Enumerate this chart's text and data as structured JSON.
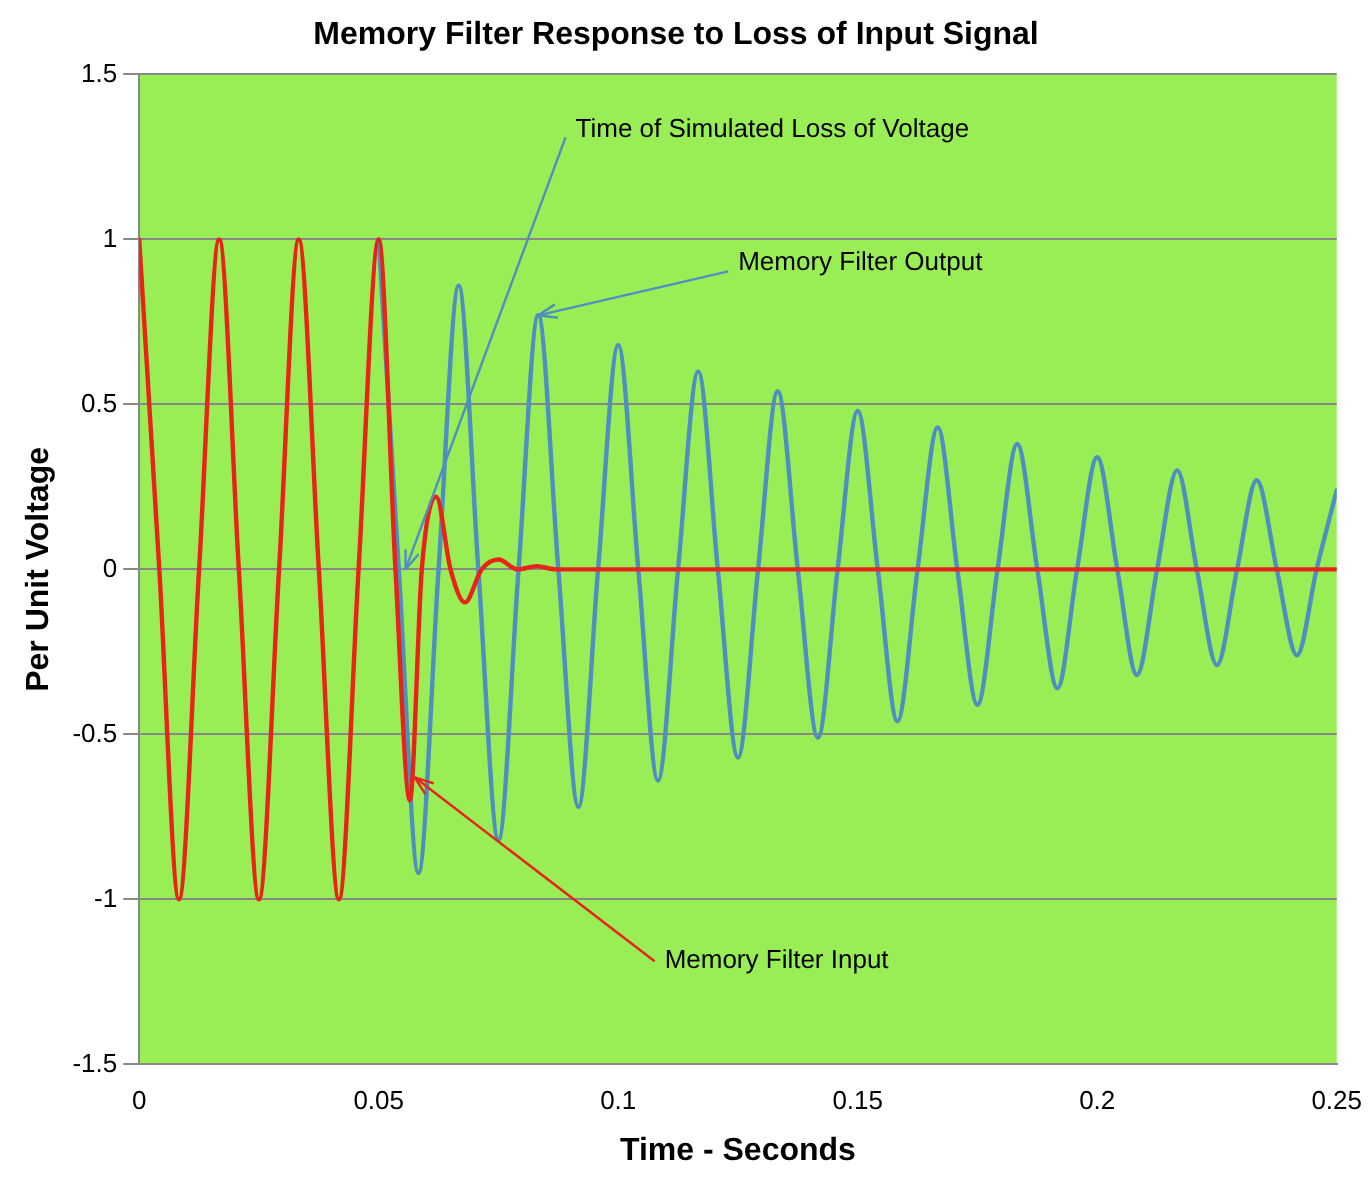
{
  "chart_data": {
    "type": "line",
    "title": "Memory Filter Response to Loss of Input Signal",
    "xlabel": "Time - Seconds",
    "ylabel": "Per Unit Voltage",
    "xlim": [
      0,
      0.25
    ],
    "xticks": [
      0,
      0.05,
      0.1,
      0.15,
      0.2,
      0.25
    ],
    "ylim": [
      -1.5,
      1.5
    ],
    "yticks": [
      -1.5,
      -1,
      -0.5,
      0,
      0.5,
      1,
      1.5
    ],
    "grid": "y",
    "legend": false,
    "marker": "none",
    "line_style": "solid",
    "series": [
      {
        "color": "#4f8fc0",
        "x": [
          0.05,
          0.0542,
          0.0583,
          0.0625,
          0.0667,
          0.0708,
          0.075,
          0.0792,
          0.0833,
          0.0875,
          0.0917,
          0.0958,
          0.1,
          0.1042,
          0.1083,
          0.1125,
          0.1167,
          0.1208,
          0.125,
          0.1292,
          0.1333,
          0.1375,
          0.1417,
          0.1458,
          0.15,
          0.1542,
          0.1583,
          0.1625,
          0.1667,
          0.1708,
          0.175,
          0.1792,
          0.1833,
          0.1875,
          0.1917,
          0.1958,
          0.2,
          0.2042,
          0.2083,
          0.2125,
          0.2167,
          0.2208,
          0.225,
          0.2292,
          0.2333,
          0.2375,
          0.2417,
          0.2458,
          0.25
        ],
        "values": [
          1,
          0,
          -0.92,
          0,
          0.86,
          0,
          -0.82,
          0,
          0.77,
          0,
          -0.72,
          0,
          0.68,
          0,
          -0.64,
          0,
          0.6,
          0,
          -0.57,
          0,
          0.54,
          0,
          -0.51,
          0,
          0.48,
          0,
          -0.46,
          0,
          0.43,
          0,
          -0.41,
          0,
          0.38,
          0,
          -0.36,
          0,
          0.34,
          0,
          -0.32,
          0,
          0.3,
          0,
          -0.29,
          0,
          0.27,
          0,
          -0.26,
          0,
          0.24
        ]
      },
      {
        "color": "#e8231a",
        "x": [
          0,
          0.0042,
          0.0083,
          0.0125,
          0.0167,
          0.0208,
          0.025,
          0.0292,
          0.0333,
          0.0375,
          0.0417,
          0.0458,
          0.05,
          0.0535,
          0.0565,
          0.059,
          0.062,
          0.065,
          0.068,
          0.0715,
          0.075,
          0.079,
          0.083,
          0.087,
          0.09,
          0.1,
          0.15,
          0.2,
          0.25
        ],
        "values": [
          1,
          0,
          -1,
          0,
          1,
          0,
          -1,
          0,
          1,
          0,
          -1,
          0,
          1,
          0,
          -0.7,
          0,
          0.22,
          0,
          -0.1,
          0,
          0.03,
          0,
          0.01,
          0,
          0,
          0,
          0,
          0,
          0
        ]
      }
    ],
    "annotations": [
      {
        "text": "Time of Simulated Loss of Voltage",
        "x": 0.0556,
        "y": 0
      },
      {
        "text": "Memory Filter Output",
        "x": 0.0833,
        "y": 0.77
      },
      {
        "text": "Memory Filter Input",
        "x": 0.0575,
        "y": -0.63
      }
    ]
  }
}
